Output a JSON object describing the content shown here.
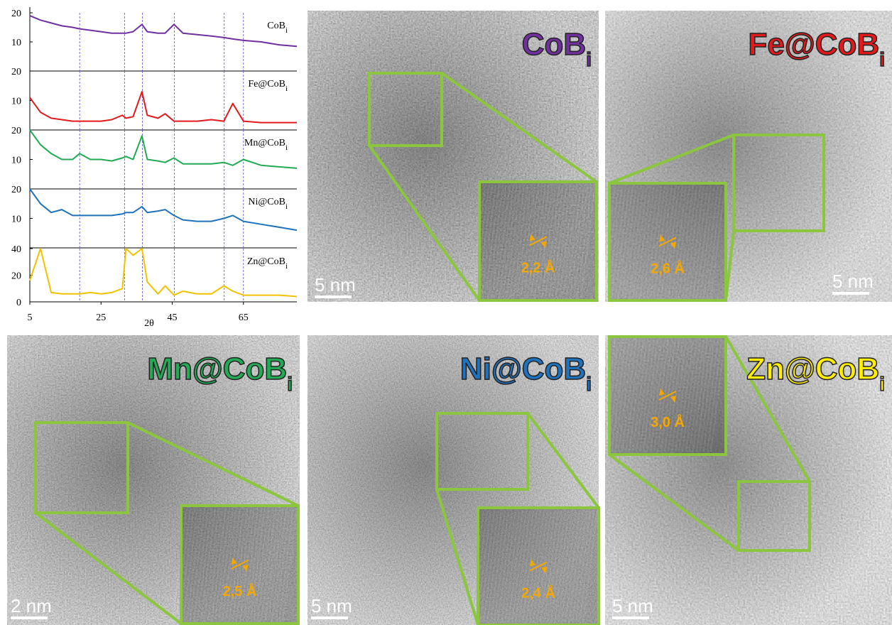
{
  "chart_data": [
    {
      "type": "line",
      "title": "CoB",
      "title_sub": "i",
      "color": "#7030a0",
      "x": [
        5,
        8,
        11,
        14,
        17,
        19,
        22,
        25,
        28,
        31,
        32,
        34,
        36.5,
        38,
        41,
        43,
        45.5,
        48,
        52,
        56,
        59.5,
        62,
        65,
        70,
        75,
        80
      ],
      "values": [
        19,
        17.5,
        16.5,
        15.5,
        15,
        14.5,
        14,
        13.5,
        13,
        13,
        13,
        13.5,
        16,
        13.5,
        13,
        13,
        16,
        13,
        12.5,
        12,
        11.5,
        11,
        10.5,
        10,
        9,
        8.5
      ],
      "xlim": [
        5,
        80
      ],
      "ylim": [
        0,
        20
      ],
      "yticks": [
        10,
        20
      ],
      "vlines": [
        19,
        31.6,
        36.6,
        45.6,
        59.6,
        65
      ]
    },
    {
      "type": "line",
      "title": "Fe@CoB",
      "title_sub": "i",
      "color": "#e31a1c",
      "x": [
        5,
        8,
        11,
        14,
        17,
        19,
        22,
        25,
        28,
        31,
        32,
        34,
        36.5,
        38,
        41,
        43,
        45.5,
        48,
        52,
        56,
        59.5,
        62,
        65,
        70,
        75,
        80
      ],
      "values": [
        11,
        6,
        4,
        3.5,
        3,
        3,
        3,
        3,
        3.5,
        5,
        4,
        4.5,
        13,
        5,
        4,
        5.5,
        3,
        3,
        3,
        3.5,
        3,
        9,
        3,
        2.5,
        2.5,
        2.5
      ],
      "xlim": [
        5,
        80
      ],
      "ylim": [
        0,
        20
      ],
      "yticks": [
        10,
        20
      ],
      "vlines": [
        19,
        31.6,
        36.6,
        45.6,
        59.6,
        65
      ]
    },
    {
      "type": "line",
      "title": "Mn@CoB",
      "title_sub": "i",
      "color": "#22aa55",
      "x": [
        5,
        8,
        11,
        14,
        17,
        19,
        22,
        25,
        28,
        31,
        32,
        34,
        36.5,
        38,
        41,
        43,
        45.5,
        48,
        52,
        56,
        59.5,
        62,
        65,
        70,
        75,
        80
      ],
      "values": [
        20,
        15,
        12,
        10,
        10,
        12,
        10,
        10,
        9.5,
        10.5,
        11,
        10,
        18,
        10,
        9.5,
        9,
        10.5,
        8.5,
        8.5,
        8.5,
        9,
        8,
        10,
        8,
        7.5,
        7
      ],
      "xlim": [
        5,
        80
      ],
      "ylim": [
        0,
        20
      ],
      "yticks": [
        10,
        20
      ],
      "vlines": [
        19,
        31.6,
        36.6,
        45.6,
        59.6,
        65
      ]
    },
    {
      "type": "line",
      "title": "Ni@CoB",
      "title_sub": "i",
      "color": "#1f72bd",
      "x": [
        5,
        8,
        11,
        14,
        17,
        19,
        22,
        25,
        28,
        31,
        32,
        34,
        36.5,
        38,
        41,
        43,
        45.5,
        48,
        52,
        56,
        59.5,
        62,
        65,
        70,
        75,
        80
      ],
      "values": [
        20,
        15,
        12,
        13,
        11,
        11,
        11,
        11,
        11,
        11.5,
        12,
        12,
        14,
        12,
        12.5,
        13,
        11,
        9.5,
        9,
        9,
        10,
        11,
        9,
        8,
        7,
        6
      ],
      "xlim": [
        5,
        80
      ],
      "ylim": [
        0,
        20
      ],
      "yticks": [
        10,
        20
      ],
      "vlines": [
        19,
        31.6,
        36.6,
        45.6,
        59.6,
        65
      ]
    },
    {
      "type": "line",
      "title": "Zn@CoB",
      "title_sub": "i",
      "color": "#f2c200",
      "x": [
        5,
        8,
        11,
        14,
        17,
        19,
        22,
        25,
        28,
        31,
        32,
        34,
        36.5,
        38,
        41,
        43,
        45.5,
        48,
        52,
        56,
        59.5,
        62,
        65,
        70,
        75,
        80
      ],
      "values": [
        16,
        40,
        7,
        6,
        6,
        6,
        7,
        6,
        7,
        10,
        40,
        35,
        40,
        15,
        6,
        12,
        5,
        8,
        6,
        6,
        12,
        8,
        5,
        5,
        5,
        4
      ],
      "xlim": [
        5,
        80
      ],
      "ylim": [
        0,
        40
      ],
      "yticks": [
        0,
        20,
        40
      ],
      "xticks": [
        5,
        25,
        45,
        65
      ],
      "xlabel": "2θ",
      "vlines": [
        19,
        31.6,
        36.6,
        45.6,
        59.6,
        65
      ]
    }
  ],
  "tem_images": [
    {
      "label": "CoB",
      "label_sub": "i",
      "label_color": "#7030a0",
      "scale_bar": "5 nm",
      "d_spacing": "2,2 Å"
    },
    {
      "label": "Fe@CoB",
      "label_sub": "i",
      "label_color": "#e31a1c",
      "scale_bar": "5 nm",
      "d_spacing": "2,6 Å"
    },
    {
      "label": "Mn@CoB",
      "label_sub": "i",
      "label_color": "#22aa55",
      "scale_bar": "2 nm",
      "d_spacing": "2,5 Å"
    },
    {
      "label": "Ni@CoB",
      "label_sub": "i",
      "label_color": "#1f72bd",
      "scale_bar": "5 nm",
      "d_spacing": "2,4 Å"
    },
    {
      "label": "Zn@CoB",
      "label_sub": "i",
      "label_color": "#ffee00",
      "scale_bar": "5 nm",
      "d_spacing": "3,0 Å"
    }
  ]
}
